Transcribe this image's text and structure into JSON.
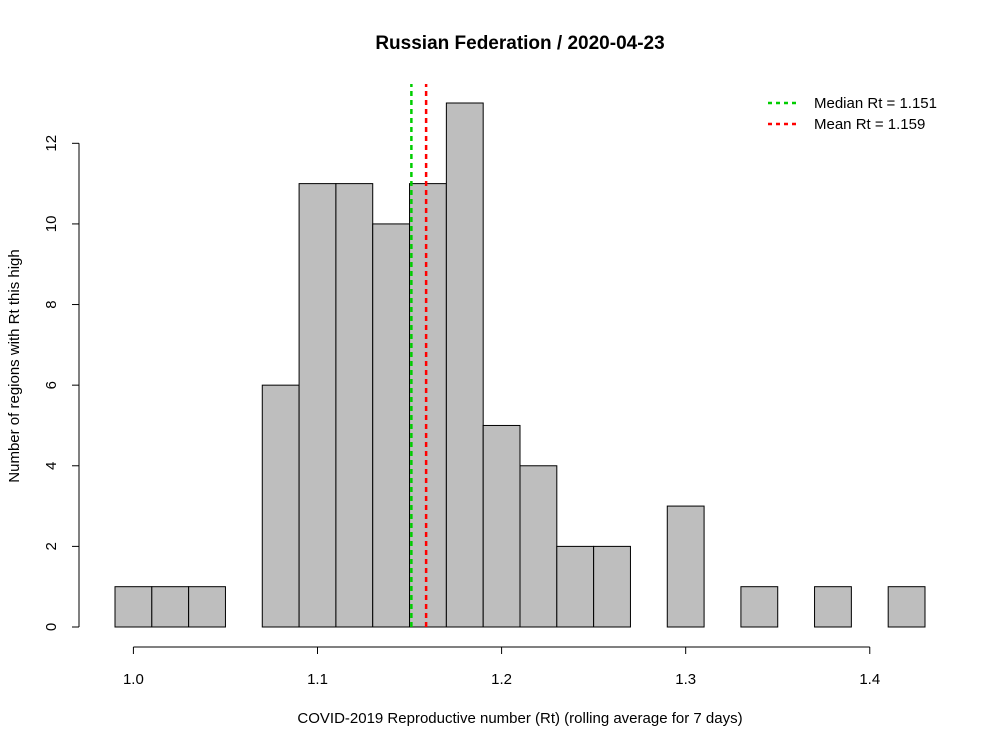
{
  "chart_data": {
    "type": "bar",
    "title": "Russian Federation / 2020-04-23",
    "xlabel": "COVID-2019 Reproductive number (Rt) (rolling average for 7 days)",
    "ylabel": "Number of regions with Rt this high",
    "bin_edges": [
      0.99,
      1.01,
      1.03,
      1.05,
      1.07,
      1.09,
      1.11,
      1.13,
      1.15,
      1.17,
      1.19,
      1.21,
      1.23,
      1.25,
      1.27,
      1.29,
      1.31,
      1.33,
      1.35,
      1.37,
      1.39,
      1.41,
      1.43
    ],
    "values": [
      1,
      1,
      1,
      0,
      6,
      11,
      11,
      10,
      11,
      13,
      5,
      4,
      2,
      2,
      0,
      3,
      0,
      1,
      0,
      1,
      0,
      1
    ],
    "xlim": [
      0.99,
      1.43
    ],
    "ylim": [
      0,
      13
    ],
    "x_ticks": [
      "1.0",
      "1.1",
      "1.2",
      "1.3",
      "1.4"
    ],
    "y_ticks": [
      "0",
      "2",
      "4",
      "6",
      "8",
      "10",
      "12"
    ],
    "bar_color": "#bebebe",
    "lines": [
      {
        "label": "Median Rt = 1.151",
        "x": 1.151,
        "color": "#00cd00"
      },
      {
        "label": "Mean Rt = 1.159",
        "x": 1.159,
        "color": "#ff0000"
      }
    ],
    "legend_position": "top-right",
    "grid": false
  }
}
